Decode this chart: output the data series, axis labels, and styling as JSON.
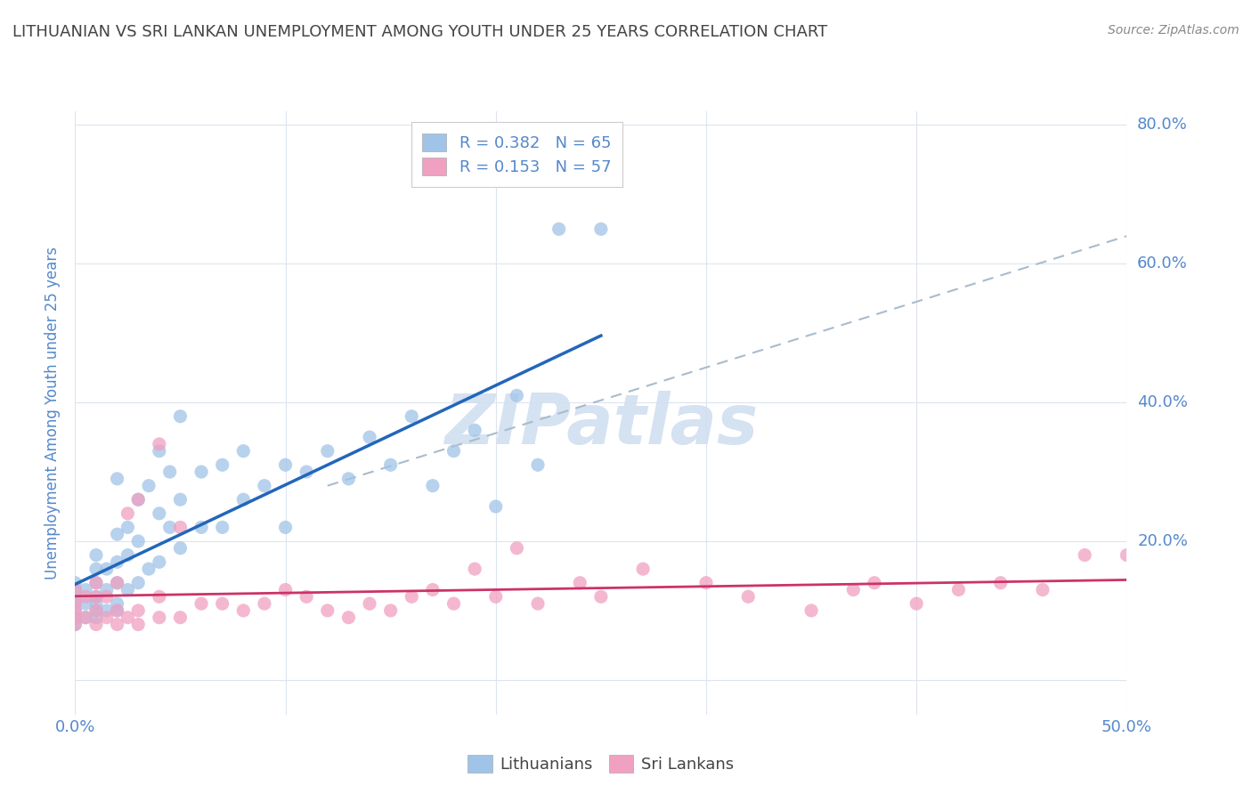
{
  "title": "LITHUANIAN VS SRI LANKAN UNEMPLOYMENT AMONG YOUTH UNDER 25 YEARS CORRELATION CHART",
  "source": "Source: ZipAtlas.com",
  "ylabel": "Unemployment Among Youth under 25 years",
  "xlim": [
    0.0,
    0.5
  ],
  "ylim": [
    -0.05,
    0.82
  ],
  "xticks": [
    0.0,
    0.1,
    0.2,
    0.3,
    0.4,
    0.5
  ],
  "yticks": [
    0.0,
    0.2,
    0.4,
    0.6,
    0.8
  ],
  "xlabel_ticks": [
    "0.0%",
    "",
    "",
    "",
    "",
    "50.0%"
  ],
  "ylabel_ticks": [
    "",
    "20.0%",
    "40.0%",
    "60.0%",
    "80.0%"
  ],
  "background_color": "#ffffff",
  "grid_color": "#dde4ee",
  "title_color": "#444444",
  "axis_label_color": "#5588cc",
  "lith_scatter_color": "#a0c4e8",
  "srilank_scatter_color": "#f0a0c0",
  "lith_line_color": "#2266bb",
  "srilank_line_color": "#cc3366",
  "ref_line_color": "#aabbcc",
  "watermark_color": "#d0dff0",
  "lith_x": [
    0.0,
    0.0,
    0.0,
    0.0,
    0.0,
    0.0,
    0.0,
    0.005,
    0.005,
    0.005,
    0.01,
    0.01,
    0.01,
    0.01,
    0.01,
    0.01,
    0.01,
    0.015,
    0.015,
    0.015,
    0.02,
    0.02,
    0.02,
    0.02,
    0.02,
    0.02,
    0.025,
    0.025,
    0.025,
    0.03,
    0.03,
    0.03,
    0.035,
    0.035,
    0.04,
    0.04,
    0.04,
    0.045,
    0.045,
    0.05,
    0.05,
    0.05,
    0.06,
    0.06,
    0.07,
    0.07,
    0.08,
    0.08,
    0.09,
    0.1,
    0.1,
    0.11,
    0.12,
    0.13,
    0.14,
    0.15,
    0.16,
    0.17,
    0.18,
    0.19,
    0.2,
    0.21,
    0.22,
    0.23,
    0.25
  ],
  "lith_y": [
    0.08,
    0.09,
    0.1,
    0.11,
    0.12,
    0.13,
    0.14,
    0.09,
    0.11,
    0.13,
    0.09,
    0.1,
    0.11,
    0.12,
    0.14,
    0.16,
    0.18,
    0.1,
    0.13,
    0.16,
    0.1,
    0.11,
    0.14,
    0.17,
    0.21,
    0.29,
    0.13,
    0.18,
    0.22,
    0.14,
    0.2,
    0.26,
    0.16,
    0.28,
    0.17,
    0.24,
    0.33,
    0.22,
    0.3,
    0.19,
    0.26,
    0.38,
    0.22,
    0.3,
    0.22,
    0.31,
    0.26,
    0.33,
    0.28,
    0.22,
    0.31,
    0.3,
    0.33,
    0.29,
    0.35,
    0.31,
    0.38,
    0.28,
    0.33,
    0.36,
    0.25,
    0.41,
    0.31,
    0.65,
    0.65
  ],
  "srilank_x": [
    0.0,
    0.0,
    0.0,
    0.0,
    0.0,
    0.005,
    0.005,
    0.01,
    0.01,
    0.01,
    0.01,
    0.015,
    0.015,
    0.02,
    0.02,
    0.02,
    0.025,
    0.025,
    0.03,
    0.03,
    0.03,
    0.04,
    0.04,
    0.04,
    0.05,
    0.05,
    0.06,
    0.07,
    0.08,
    0.09,
    0.1,
    0.11,
    0.12,
    0.13,
    0.14,
    0.15,
    0.16,
    0.17,
    0.18,
    0.19,
    0.2,
    0.21,
    0.22,
    0.24,
    0.25,
    0.27,
    0.3,
    0.32,
    0.35,
    0.37,
    0.38,
    0.4,
    0.42,
    0.44,
    0.46,
    0.48,
    0.5
  ],
  "srilank_y": [
    0.08,
    0.09,
    0.1,
    0.11,
    0.13,
    0.09,
    0.12,
    0.08,
    0.1,
    0.12,
    0.14,
    0.09,
    0.12,
    0.08,
    0.1,
    0.14,
    0.09,
    0.24,
    0.08,
    0.1,
    0.26,
    0.09,
    0.12,
    0.34,
    0.09,
    0.22,
    0.11,
    0.11,
    0.1,
    0.11,
    0.13,
    0.12,
    0.1,
    0.09,
    0.11,
    0.1,
    0.12,
    0.13,
    0.11,
    0.16,
    0.12,
    0.19,
    0.11,
    0.14,
    0.12,
    0.16,
    0.14,
    0.12,
    0.1,
    0.13,
    0.14,
    0.11,
    0.13,
    0.14,
    0.13,
    0.18,
    0.18
  ],
  "lith_line_x": [
    0.0,
    0.2
  ],
  "lith_line_y": [
    0.1,
    0.4
  ],
  "srilank_line_x": [
    0.0,
    0.5
  ],
  "srilank_line_y": [
    0.1,
    0.18
  ],
  "ref_line_x": [
    0.12,
    0.5
  ],
  "ref_line_y": [
    0.28,
    0.64
  ]
}
